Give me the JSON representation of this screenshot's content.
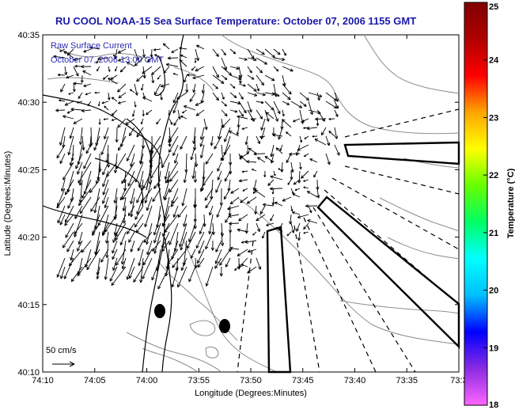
{
  "title": "RU COOL  NOAA-15  Sea Surface Temperature:  October 07, 2006 1155 GMT",
  "overlay": {
    "line1": "Raw Surface Current",
    "line2": "October 07, 2006 13:00 GMT"
  },
  "x_axis": {
    "label": "Longitude (Degrees:Minutes)",
    "ticks": [
      "74:10",
      "74:05",
      "74:00",
      "73:55",
      "73:50",
      "73:45",
      "73:40",
      "73:35",
      "73:3"
    ]
  },
  "y_axis": {
    "label": "Latitude (Degrees:Minutes)",
    "ticks": [
      "40:35",
      "40:30",
      "40:25",
      "40:20",
      "40:15",
      "40:10"
    ]
  },
  "colorbar": {
    "label": "Temperature (°C)",
    "ticks": [
      "25",
      "24",
      "23",
      "22",
      "21",
      "20",
      "19",
      "18"
    ],
    "range": [
      18,
      25
    ],
    "colors": [
      "#ff66ff",
      "#8a2be2",
      "#0000ff",
      "#00bfff",
      "#00ffff",
      "#00ff66",
      "#66ff00",
      "#ffff00",
      "#ffa500",
      "#ff0000",
      "#b00000",
      "#800000"
    ]
  },
  "scale_label": "50 cm/s",
  "colors": {
    "title": "#1a1aa8",
    "overlay": "#2a2ab0",
    "coast": "#000000",
    "bathymetry": "#888888"
  }
}
